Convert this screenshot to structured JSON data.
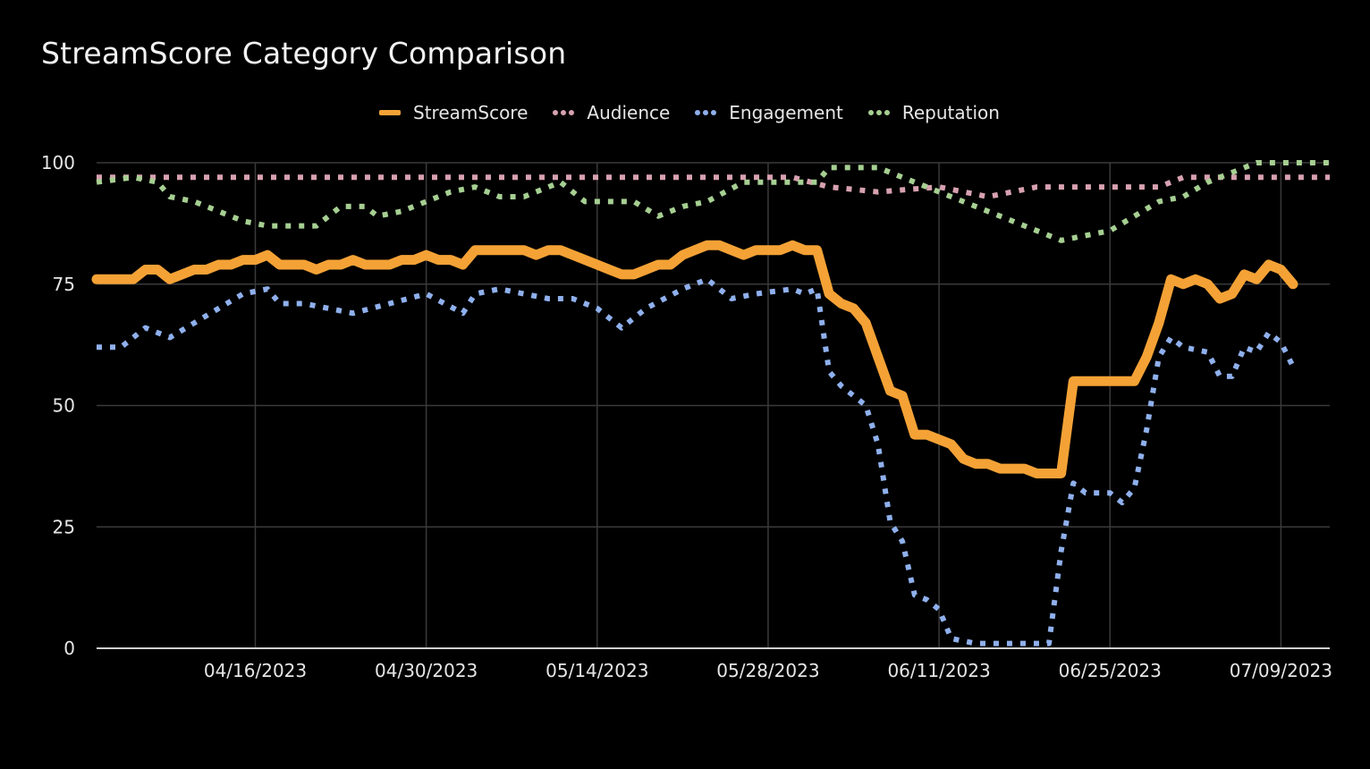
{
  "chart_data": {
    "type": "line",
    "title": "StreamScore Category Comparison",
    "xlabel": "",
    "ylabel": "",
    "ylim": [
      0,
      100
    ],
    "yticks": [
      "0",
      "25",
      "50",
      "75",
      "100"
    ],
    "xlim": [
      "2023-04-03",
      "2023-07-13"
    ],
    "xticks": [
      "04/16/2023",
      "04/30/2023",
      "05/14/2023",
      "05/28/2023",
      "06/11/2023",
      "06/25/2023",
      "07/09/2023"
    ],
    "grid": true,
    "legend_position": "top",
    "series": [
      {
        "name": "StreamScore",
        "color": "#f4a236",
        "style": "solid",
        "points": [
          [
            "2023-04-03",
            76
          ],
          [
            "2023-04-05",
            76
          ],
          [
            "2023-04-06",
            76
          ],
          [
            "2023-04-07",
            78
          ],
          [
            "2023-04-08",
            78
          ],
          [
            "2023-04-09",
            76
          ],
          [
            "2023-04-10",
            77
          ],
          [
            "2023-04-11",
            78
          ],
          [
            "2023-04-12",
            78
          ],
          [
            "2023-04-13",
            79
          ],
          [
            "2023-04-14",
            79
          ],
          [
            "2023-04-15",
            80
          ],
          [
            "2023-04-16",
            80
          ],
          [
            "2023-04-17",
            81
          ],
          [
            "2023-04-18",
            79
          ],
          [
            "2023-04-19",
            79
          ],
          [
            "2023-04-20",
            79
          ],
          [
            "2023-04-21",
            78
          ],
          [
            "2023-04-22",
            79
          ],
          [
            "2023-04-23",
            79
          ],
          [
            "2023-04-24",
            80
          ],
          [
            "2023-04-25",
            79
          ],
          [
            "2023-04-26",
            79
          ],
          [
            "2023-04-27",
            79
          ],
          [
            "2023-04-28",
            80
          ],
          [
            "2023-04-29",
            80
          ],
          [
            "2023-04-30",
            81
          ],
          [
            "2023-05-01",
            80
          ],
          [
            "2023-05-02",
            80
          ],
          [
            "2023-05-03",
            79
          ],
          [
            "2023-05-04",
            82
          ],
          [
            "2023-05-06",
            82
          ],
          [
            "2023-05-08",
            82
          ],
          [
            "2023-05-09",
            81
          ],
          [
            "2023-05-10",
            82
          ],
          [
            "2023-05-11",
            82
          ],
          [
            "2023-05-12",
            81
          ],
          [
            "2023-05-14",
            79
          ],
          [
            "2023-05-15",
            78
          ],
          [
            "2023-05-16",
            77
          ],
          [
            "2023-05-17",
            77
          ],
          [
            "2023-05-18",
            78
          ],
          [
            "2023-05-19",
            79
          ],
          [
            "2023-05-20",
            79
          ],
          [
            "2023-05-21",
            81
          ],
          [
            "2023-05-22",
            82
          ],
          [
            "2023-05-23",
            83
          ],
          [
            "2023-05-24",
            83
          ],
          [
            "2023-05-25",
            82
          ],
          [
            "2023-05-26",
            81
          ],
          [
            "2023-05-27",
            82
          ],
          [
            "2023-05-28",
            82
          ],
          [
            "2023-05-29",
            82
          ],
          [
            "2023-05-30",
            83
          ],
          [
            "2023-05-31",
            82
          ],
          [
            "2023-06-01",
            82
          ],
          [
            "2023-06-02",
            73
          ],
          [
            "2023-06-03",
            71
          ],
          [
            "2023-06-04",
            70
          ],
          [
            "2023-06-05",
            67
          ],
          [
            "2023-06-06",
            60
          ],
          [
            "2023-06-07",
            53
          ],
          [
            "2023-06-08",
            52
          ],
          [
            "2023-06-09",
            44
          ],
          [
            "2023-06-10",
            44
          ],
          [
            "2023-06-11",
            43
          ],
          [
            "2023-06-12",
            42
          ],
          [
            "2023-06-13",
            39
          ],
          [
            "2023-06-14",
            38
          ],
          [
            "2023-06-15",
            38
          ],
          [
            "2023-06-16",
            37
          ],
          [
            "2023-06-17",
            37
          ],
          [
            "2023-06-18",
            37
          ],
          [
            "2023-06-19",
            36
          ],
          [
            "2023-06-20",
            36
          ],
          [
            "2023-06-21",
            36
          ],
          [
            "2023-06-22",
            55
          ],
          [
            "2023-06-23",
            55
          ],
          [
            "2023-06-24",
            55
          ],
          [
            "2023-06-25",
            55
          ],
          [
            "2023-06-26",
            55
          ],
          [
            "2023-06-27",
            55
          ],
          [
            "2023-06-28",
            60
          ],
          [
            "2023-06-29",
            67
          ],
          [
            "2023-06-30",
            76
          ],
          [
            "2023-07-01",
            75
          ],
          [
            "2023-07-02",
            76
          ],
          [
            "2023-07-03",
            75
          ],
          [
            "2023-07-04",
            72
          ],
          [
            "2023-07-05",
            73
          ],
          [
            "2023-07-06",
            77
          ],
          [
            "2023-07-07",
            76
          ],
          [
            "2023-07-08",
            79
          ],
          [
            "2023-07-09",
            78
          ],
          [
            "2023-07-10",
            75
          ]
        ]
      },
      {
        "name": "Audience",
        "color": "#d7a1b0",
        "style": "dotted",
        "points": [
          [
            "2023-04-03",
            97
          ],
          [
            "2023-05-30",
            97
          ],
          [
            "2023-06-02",
            95
          ],
          [
            "2023-06-06",
            94
          ],
          [
            "2023-06-11",
            95
          ],
          [
            "2023-06-15",
            93
          ],
          [
            "2023-06-19",
            95
          ],
          [
            "2023-06-29",
            95
          ],
          [
            "2023-07-01",
            97
          ],
          [
            "2023-07-13",
            97
          ]
        ]
      },
      {
        "name": "Engagement",
        "color": "#8fb0ec",
        "style": "dotted",
        "points": [
          [
            "2023-04-03",
            62
          ],
          [
            "2023-04-05",
            62
          ],
          [
            "2023-04-07",
            66
          ],
          [
            "2023-04-09",
            64
          ],
          [
            "2023-04-11",
            67
          ],
          [
            "2023-04-13",
            70
          ],
          [
            "2023-04-15",
            73
          ],
          [
            "2023-04-17",
            74
          ],
          [
            "2023-04-18",
            71
          ],
          [
            "2023-04-20",
            71
          ],
          [
            "2023-04-22",
            70
          ],
          [
            "2023-04-24",
            69
          ],
          [
            "2023-04-27",
            71
          ],
          [
            "2023-04-30",
            73
          ],
          [
            "2023-05-03",
            69
          ],
          [
            "2023-05-04",
            73
          ],
          [
            "2023-05-06",
            74
          ],
          [
            "2023-05-08",
            73
          ],
          [
            "2023-05-10",
            72
          ],
          [
            "2023-05-12",
            72
          ],
          [
            "2023-05-14",
            70
          ],
          [
            "2023-05-16",
            66
          ],
          [
            "2023-05-18",
            70
          ],
          [
            "2023-05-21",
            74
          ],
          [
            "2023-05-23",
            76
          ],
          [
            "2023-05-25",
            72
          ],
          [
            "2023-05-27",
            73
          ],
          [
            "2023-05-30",
            74
          ],
          [
            "2023-05-31",
            73
          ],
          [
            "2023-06-01",
            74
          ],
          [
            "2023-06-02",
            57
          ],
          [
            "2023-06-03",
            54
          ],
          [
            "2023-06-05",
            50
          ],
          [
            "2023-06-06",
            42
          ],
          [
            "2023-06-07",
            26
          ],
          [
            "2023-06-08",
            22
          ],
          [
            "2023-06-09",
            11
          ],
          [
            "2023-06-10",
            10
          ],
          [
            "2023-06-11",
            8
          ],
          [
            "2023-06-12",
            2
          ],
          [
            "2023-06-14",
            1
          ],
          [
            "2023-06-20",
            1
          ],
          [
            "2023-06-21",
            20
          ],
          [
            "2023-06-22",
            34
          ],
          [
            "2023-06-23",
            32
          ],
          [
            "2023-06-25",
            32
          ],
          [
            "2023-06-26",
            30
          ],
          [
            "2023-06-27",
            33
          ],
          [
            "2023-06-28",
            45
          ],
          [
            "2023-06-29",
            60
          ],
          [
            "2023-06-30",
            64
          ],
          [
            "2023-07-01",
            62
          ],
          [
            "2023-07-03",
            61
          ],
          [
            "2023-07-04",
            56
          ],
          [
            "2023-07-05",
            56
          ],
          [
            "2023-07-06",
            62
          ],
          [
            "2023-07-07",
            61
          ],
          [
            "2023-07-08",
            65
          ],
          [
            "2023-07-09",
            63
          ],
          [
            "2023-07-10",
            58
          ]
        ]
      },
      {
        "name": "Reputation",
        "color": "#a6cf92",
        "style": "dotted",
        "points": [
          [
            "2023-04-03",
            96
          ],
          [
            "2023-04-06",
            97
          ],
          [
            "2023-04-08",
            96
          ],
          [
            "2023-04-09",
            93
          ],
          [
            "2023-04-11",
            92
          ],
          [
            "2023-04-13",
            90
          ],
          [
            "2023-04-15",
            88
          ],
          [
            "2023-04-17",
            87
          ],
          [
            "2023-04-21",
            87
          ],
          [
            "2023-04-23",
            91
          ],
          [
            "2023-04-25",
            91
          ],
          [
            "2023-04-26",
            89
          ],
          [
            "2023-04-28",
            90
          ],
          [
            "2023-04-30",
            92
          ],
          [
            "2023-05-02",
            94
          ],
          [
            "2023-05-04",
            95
          ],
          [
            "2023-05-06",
            93
          ],
          [
            "2023-05-08",
            93
          ],
          [
            "2023-05-10",
            95
          ],
          [
            "2023-05-11",
            96
          ],
          [
            "2023-05-13",
            92
          ],
          [
            "2023-05-17",
            92
          ],
          [
            "2023-05-19",
            89
          ],
          [
            "2023-05-21",
            91
          ],
          [
            "2023-05-23",
            92
          ],
          [
            "2023-05-26",
            96
          ],
          [
            "2023-05-28",
            96
          ],
          [
            "2023-05-30",
            96
          ],
          [
            "2023-06-01",
            96
          ],
          [
            "2023-06-02",
            99
          ],
          [
            "2023-06-06",
            99
          ],
          [
            "2023-06-08",
            97
          ],
          [
            "2023-06-10",
            95
          ],
          [
            "2023-06-12",
            93
          ],
          [
            "2023-06-14",
            91
          ],
          [
            "2023-06-16",
            89
          ],
          [
            "2023-06-18",
            87
          ],
          [
            "2023-06-20",
            85
          ],
          [
            "2023-06-21",
            84
          ],
          [
            "2023-06-23",
            85
          ],
          [
            "2023-06-25",
            86
          ],
          [
            "2023-06-27",
            89
          ],
          [
            "2023-06-29",
            92
          ],
          [
            "2023-07-01",
            93
          ],
          [
            "2023-07-03",
            96
          ],
          [
            "2023-07-05",
            98
          ],
          [
            "2023-07-07",
            100
          ],
          [
            "2023-07-13",
            100
          ]
        ]
      }
    ]
  }
}
